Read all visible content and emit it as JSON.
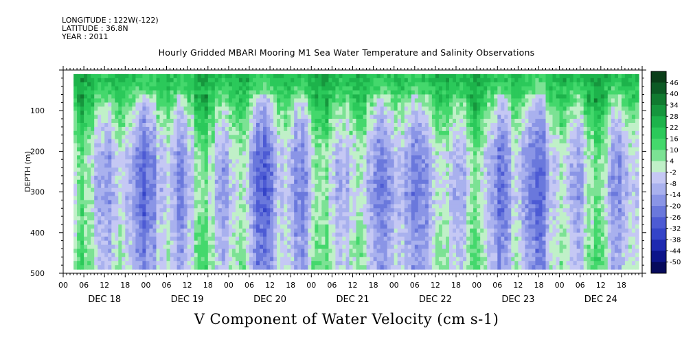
{
  "header": {
    "longitude": "LONGITUDE : 122W(-122)",
    "latitude": "LATITUDE : 36.8N",
    "year": "YEAR : 2011"
  },
  "chart_data": {
    "type": "heatmap",
    "title": "Hourly Gridded MBARI Mooring M1 Sea Water Temperature and Salinity Observations",
    "subtitle": "V Component of Water Velocity (cm s-1)",
    "ylabel": "DEPTH (m)",
    "y_reversed": true,
    "ylim": [
      0,
      500
    ],
    "y_ticks": [
      100,
      200,
      300,
      400,
      500
    ],
    "x_hour_labels": [
      "00",
      "06",
      "12",
      "18",
      "00",
      "06",
      "12",
      "18",
      "00",
      "06",
      "12",
      "18",
      "00",
      "06",
      "12",
      "18",
      "00",
      "06",
      "12",
      "18",
      "00",
      "06",
      "12",
      "18",
      "00",
      "06",
      "12",
      "18"
    ],
    "x_day_labels": [
      "DEC 18",
      "DEC 19",
      "DEC 20",
      "DEC 21",
      "DEC 22",
      "DEC 23",
      "DEC 24"
    ],
    "x_range_hours": [
      0,
      168
    ],
    "data_x_range_hours": [
      3,
      167
    ],
    "data_depth_range_m": [
      10,
      490
    ],
    "colorbar": {
      "labels": [
        "46",
        "40",
        "34",
        "28",
        "22",
        "16",
        "10",
        "4",
        "-2",
        "-8",
        "-14",
        "-20",
        "-26",
        "-32",
        "-38",
        "-44",
        "-50"
      ],
      "colors": [
        "#0a3d18",
        "#0c5a24",
        "#117a30",
        "#16963d",
        "#1db34b",
        "#2bc95a",
        "#44d86c",
        "#7ce294",
        "#c0f0c8",
        "#c5c8f4",
        "#a9b1ee",
        "#8a95e6",
        "#6a78dc",
        "#4d5bd4",
        "#3444c8",
        "#1e2ab0",
        "#0c148a",
        "#060a5c"
      ]
    },
    "grid": false,
    "depth_profile_approx": {
      "depths_m": [
        20,
        100,
        200,
        300,
        400,
        480
      ],
      "typical_v_cm_s": [
        20,
        4,
        -8,
        -10,
        -6,
        -4
      ]
    }
  }
}
